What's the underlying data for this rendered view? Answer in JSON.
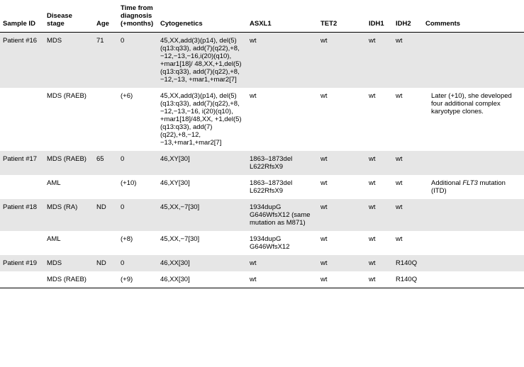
{
  "columns": {
    "sample": "Sample ID",
    "stage": "Disease stage",
    "age": "Age",
    "time": "Time from diagnosis (+months)",
    "cyto": "Cytogenetics",
    "asxl1": "ASXL1",
    "tet2": "TET2",
    "idh1": "IDH1",
    "idh2": "IDH2",
    "comments": "Comments"
  },
  "rows": [
    {
      "shade": true,
      "sample": "Patient #16",
      "stage": "MDS",
      "age": "71",
      "time": "0",
      "cyto": "45,XX,add(3)(p14), del(5)(q13:q33), add(7)(q22),+8, −12,−13,−16,i(20)(q10), +mar1[18]/ 48,XX,+1,del(5)(q13:q33), add(7)(q22),+8, −12,−13, +mar1,+mar2[7]",
      "asxl1": "wt",
      "tet2": "wt",
      "idh1": "wt",
      "idh2": "wt",
      "comments": ""
    },
    {
      "shade": false,
      "sample": "",
      "stage": "MDS (RAEB)",
      "age": "",
      "time": "(+6)",
      "cyto": "45,XX,add(3)(p14), del(5)(q13:q33), add(7)(q22),+8, −12,−13,−16, i(20)(q10), +mar1[18]/48,XX, +1,del(5)(q13:q33), add(7)(q22),+8,−12, −13,+mar1,+mar2[7]",
      "asxl1": "wt",
      "tet2": "wt",
      "idh1": "wt",
      "idh2": "wt",
      "comments": "Later (+10), she developed four additional complex karyotype clones."
    },
    {
      "shade": true,
      "sample": "Patient #17",
      "stage": "MDS (RAEB)",
      "age": "65",
      "time": "0",
      "cyto": "46,XY[30]",
      "asxl1": "1863–1873del L622RfsX9",
      "tet2": "wt",
      "idh1": "wt",
      "idh2": "wt",
      "comments": ""
    },
    {
      "shade": false,
      "sample": "",
      "stage": "AML",
      "age": "",
      "time": "(+10)",
      "cyto": "46,XY[30]",
      "asxl1": "1863–1873del L622RfsX9",
      "tet2": "wt",
      "idh1": "wt",
      "idh2": "wt",
      "comments_html": "Additional <span class=\"ital\">FLT3</span> mutation (ITD)"
    },
    {
      "shade": true,
      "sample": "Patient #18",
      "stage": "MDS (RA)",
      "age": "ND",
      "time": "0",
      "cyto": "45,XX,−7[30]",
      "asxl1": "1934dupG G646WfsX12 (same mutation as M871)",
      "tet2": "wt",
      "idh1": "wt",
      "idh2": "wt",
      "comments": ""
    },
    {
      "shade": false,
      "sample": "",
      "stage": "AML",
      "age": "",
      "time": "(+8)",
      "cyto": "45,XX,−7[30]",
      "asxl1": "1934dupG G646WfsX12",
      "tet2": "wt",
      "idh1": "wt",
      "idh2": "wt",
      "comments": ""
    },
    {
      "shade": true,
      "sample": "Patient #19",
      "stage": "MDS",
      "age": "ND",
      "time": "0",
      "cyto": "46,XX[30]",
      "asxl1": "wt",
      "tet2": "wt",
      "idh1": "wt",
      "idh2": "R140Q",
      "comments": ""
    },
    {
      "shade": false,
      "last": true,
      "sample": "",
      "stage": "MDS (RAEB)",
      "age": "",
      "time": "(+9)",
      "cyto": "46,XX[30]",
      "asxl1": "wt",
      "tet2": "wt",
      "idh1": "wt",
      "idh2": "R140Q",
      "comments": ""
    }
  ]
}
